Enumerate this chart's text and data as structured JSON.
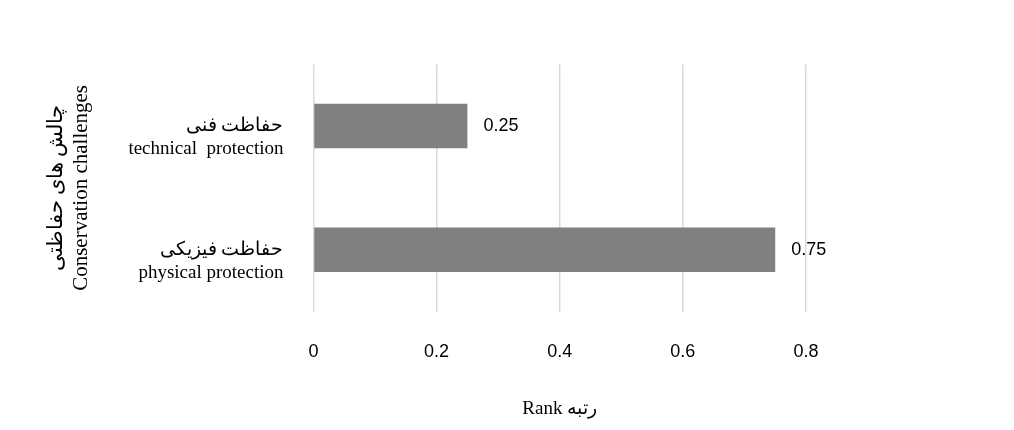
{
  "chart_data": {
    "type": "bar",
    "orientation": "horizontal",
    "categories": [
      "حفاظت فنی\ntechnical  protection",
      "حفاظت فیزیکی\nphysical protection"
    ],
    "values": [
      0.25,
      0.75
    ],
    "color": "#808080",
    "xlim": [
      0,
      0.8
    ],
    "xticks": [
      0,
      0.2,
      0.4,
      0.6,
      0.8
    ],
    "xlabel": "Rank رتبه",
    "ylabel": "چالش های حفاظتی\nConservation challenges",
    "grid": "x",
    "legend": false,
    "data_labels": true
  }
}
